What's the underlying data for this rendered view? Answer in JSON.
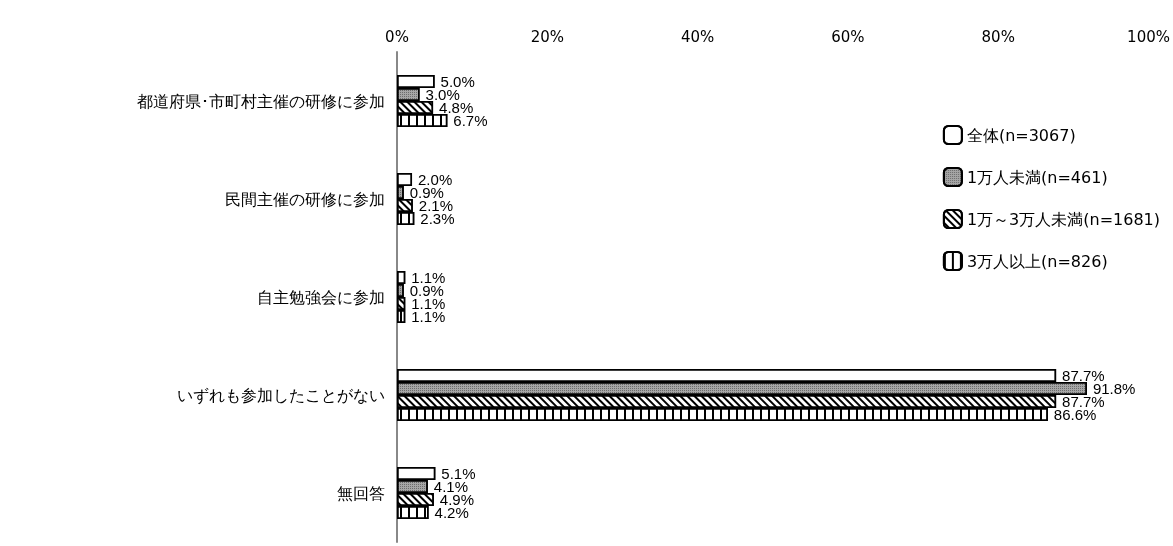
{
  "chart_data": {
    "type": "bar",
    "orientation": "horizontal",
    "categories": [
      "都道府県･市町村主催の研修に参加",
      "民間主催の研修に参加",
      "自主勉強会に参加",
      "いずれも参加したことがない",
      "無回答"
    ],
    "series": [
      {
        "name": "全体(n=3067)",
        "color": "#ffffff",
        "values": [
          5.0,
          2.0,
          1.1,
          87.7,
          5.1
        ],
        "value_labels": [
          "5.0%",
          "2.0%",
          "1.1%",
          "87.7%",
          "5.1%"
        ]
      },
      {
        "name": "1万人未満(n=461)",
        "color": "#a6a6a6",
        "values": [
          3.0,
          0.9,
          0.9,
          91.8,
          4.1
        ],
        "value_labels": [
          "3.0%",
          "0.9%",
          "0.9%",
          "91.8%",
          "4.1%"
        ]
      },
      {
        "name": "1万～3万人未満(n=1681)",
        "color": "#ffffff",
        "values": [
          4.8,
          2.1,
          1.1,
          87.7,
          4.9
        ],
        "value_labels": [
          "4.8%",
          "2.1%",
          "1.1%",
          "87.7%",
          "4.9%"
        ]
      },
      {
        "name": "3万人以上(n=826)",
        "color": "#ffffff",
        "values": [
          6.7,
          2.3,
          1.1,
          86.6,
          4.2
        ],
        "value_labels": [
          "6.7%",
          "2.3%",
          "1.1%",
          "86.6%",
          "4.2%"
        ]
      }
    ],
    "xlim": [
      0,
      100
    ],
    "xticks": [
      {
        "value": 0,
        "label": "0%"
      },
      {
        "value": 20,
        "label": "20%"
      },
      {
        "value": 40,
        "label": "40%"
      },
      {
        "value": 60,
        "label": "60%"
      },
      {
        "value": 80,
        "label": "80%"
      },
      {
        "value": 100,
        "label": "100%"
      }
    ],
    "grid": false,
    "legend": "right"
  }
}
